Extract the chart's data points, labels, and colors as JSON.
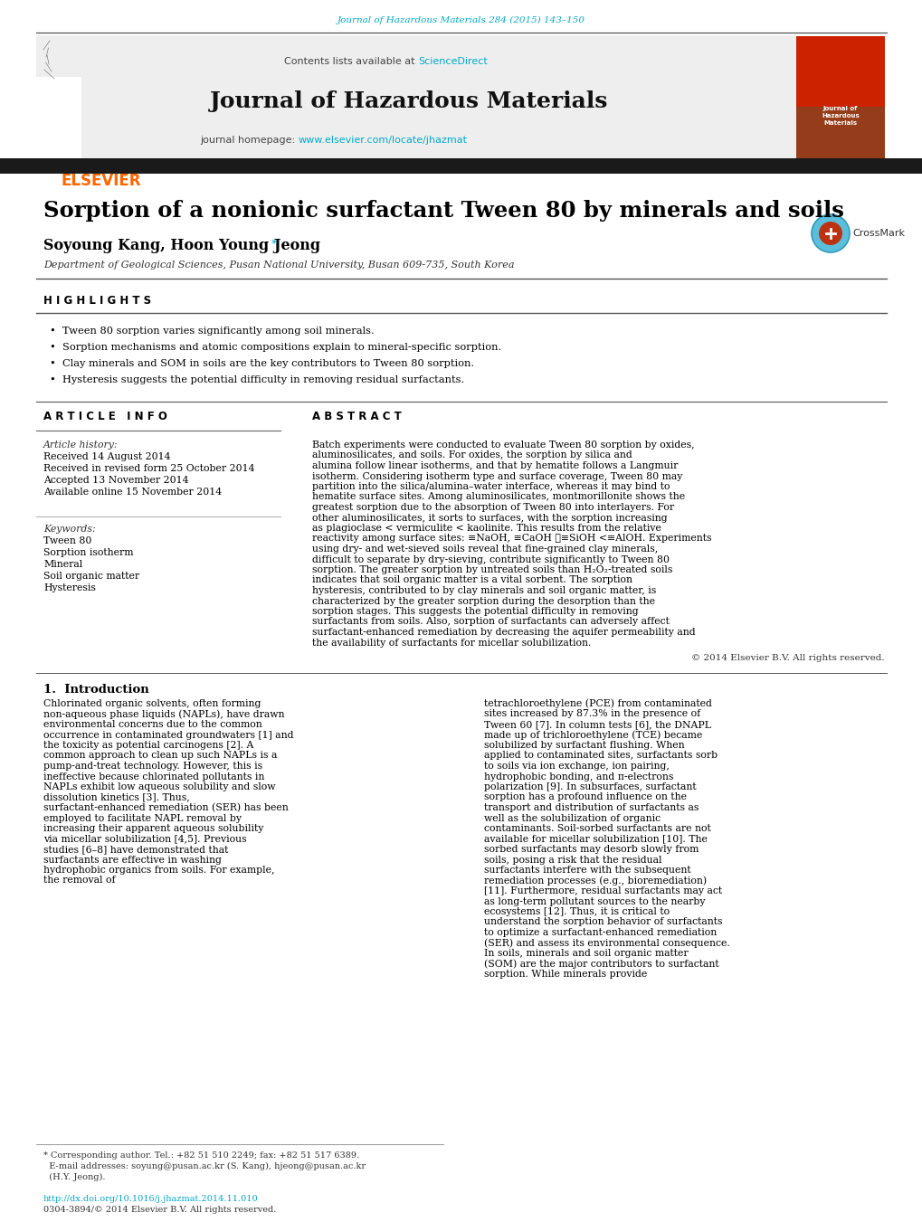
{
  "page_title": "Journal of Hazardous Materials 284 (2015) 143–150",
  "journal_name": "Journal of Hazardous Materials",
  "journal_homepage": "www.elsevier.com/locate/jhazmat",
  "contents_text": "Contents lists available at ",
  "sciencedirect_text": "ScienceDirect",
  "elsevier_text": "ELSEVIER",
  "article_title": "Sorption of a nonionic surfactant Tween 80 by minerals and soils",
  "authors": "Soyoung Kang, Hoon Young Jeong",
  "affiliation": "Department of Geological Sciences, Pusan National University, Busan 609-735, South Korea",
  "highlights_title": "H I G H L I G H T S",
  "highlights": [
    "Tween 80 sorption varies significantly among soil minerals.",
    "Sorption mechanisms and atomic compositions explain to mineral-specific sorption.",
    "Clay minerals and SOM in soils are the key contributors to Tween 80 sorption.",
    "Hysteresis suggests the potential difficulty in removing residual surfactants."
  ],
  "article_info_title": "A R T I C L E   I N F O",
  "abstract_title": "A B S T R A C T",
  "article_history_label": "Article history:",
  "received": "Received 14 August 2014",
  "received_revised": "Received in revised form 25 October 2014",
  "accepted": "Accepted 13 November 2014",
  "available": "Available online 15 November 2014",
  "keywords_label": "Keywords:",
  "keywords": [
    "Tween 80",
    "Sorption isotherm",
    "Mineral",
    "Soil organic matter",
    "Hysteresis"
  ],
  "abstract_text": "Batch experiments were conducted to evaluate Tween 80 sorption by oxides, aluminosilicates, and soils. For oxides, the sorption by silica and alumina follow linear isotherms, and that by hematite follows a Langmuir isotherm. Considering isotherm type and surface coverage, Tween 80 may partition into the silica/alumina–water interface, whereas it may bind to hematite surface sites. Among aluminosilicates, montmorillonite shows the greatest sorption due to the absorption of Tween 80 into interlayers. For other aluminosilicates, it sorts to surfaces, with the sorption increasing as plagioclase < vermiculite < kaolinite. This results from the relative reactivity among surface sites: ≡NaOH, ≡CaOH ≪≡SiOH <≡AlOH. Experiments using dry- and wet-sieved soils reveal that fine-grained clay minerals, difficult to separate by dry-sieving, contribute significantly to Tween 80 sorption. The greater sorption by untreated soils than H₂O₂-treated soils indicates that soil organic matter is a vital sorbent. The sorption hysteresis, contributed to by clay minerals and soil organic matter, is characterized by the greater sorption during the desorption than the sorption stages. This suggests the potential difficulty in removing surfactants from soils. Also, sorption of surfactants can adversely affect surfactant-enhanced remediation by decreasing the aquifer permeability and the availability of surfactants for micellar solubilization.",
  "copyright": "© 2014 Elsevier B.V. All rights reserved.",
  "intro_title": "1.  Introduction",
  "intro_col1": "Chlorinated organic solvents, often forming non-aqueous phase liquids (NAPLs), have drawn environmental concerns due to the common occurrence in contaminated groundwaters [1] and the toxicity as potential carcinogens [2]. A common approach to clean up such NAPLs is a pump-and-treat technology. However, this is ineffective because chlorinated pollutants in NAPLs exhibit low aqueous solubility and slow dissolution kinetics [3]. Thus, surfactant-enhanced remediation (SER) has been employed to facilitate NAPL removal by increasing their apparent aqueous solubility via micellar solubilization [4,5]. Previous studies [6–8] have demonstrated that surfactants are effective in washing hydrophobic organics from soils. For example, the removal of",
  "intro_col2": "tetrachloroethylene (PCE) from contaminated sites increased by 87.3% in the presence of Tween 60 [7]. In column tests [6], the DNAPL made up of trichloroethylene (TCE) became solubilized by surfactant flushing. When applied to contaminated sites, surfactants sorb to soils via ion exchange, ion pairing, hydrophobic bonding, and π-electrons polarization [9]. In subsurfaces, surfactant sorption has a profound influence on the transport and distribution of surfactants as well as the solubilization of organic contaminants. Soil-sorbed surfactants are not available for micellar solubilization [10]. The sorbed surfactants may desorb slowly from soils, posing a risk that the residual surfactants interfere with the subsequent remediation processes (e.g., bioremediation) [11]. Furthermore, residual surfactants may act as long-term pollutant sources to the nearby ecosystems [12]. Thus, it is critical to understand the sorption behavior of surfactants to optimize a surfactant-enhanced remediation (SER) and assess its environmental consequence. In soils, minerals and soil organic matter (SOM) are the major contributors to surfactant sorption. While minerals provide",
  "footer_line1": "* Corresponding author. Tel.: +82 51 510 2249; fax: +82 51 517 6389.",
  "footer_line2": "  E-mail addresses: soyung@pusan.ac.kr (S. Kang), hjeong@pusan.ac.kr",
  "footer_line3": "  (H.Y. Jeong).",
  "footer_doi": "http://dx.doi.org/10.1016/j.jhazmat.2014.11.010",
  "footer_copy": "0304-3894/© 2014 Elsevier B.V. All rights reserved.",
  "bg_color": "#ffffff",
  "header_bg": "#eeeeee",
  "dark_bar_color": "#1a1a1a",
  "link_color": "#00aacc",
  "elsevier_orange": "#ff6600",
  "cover_red": "#cc2200"
}
